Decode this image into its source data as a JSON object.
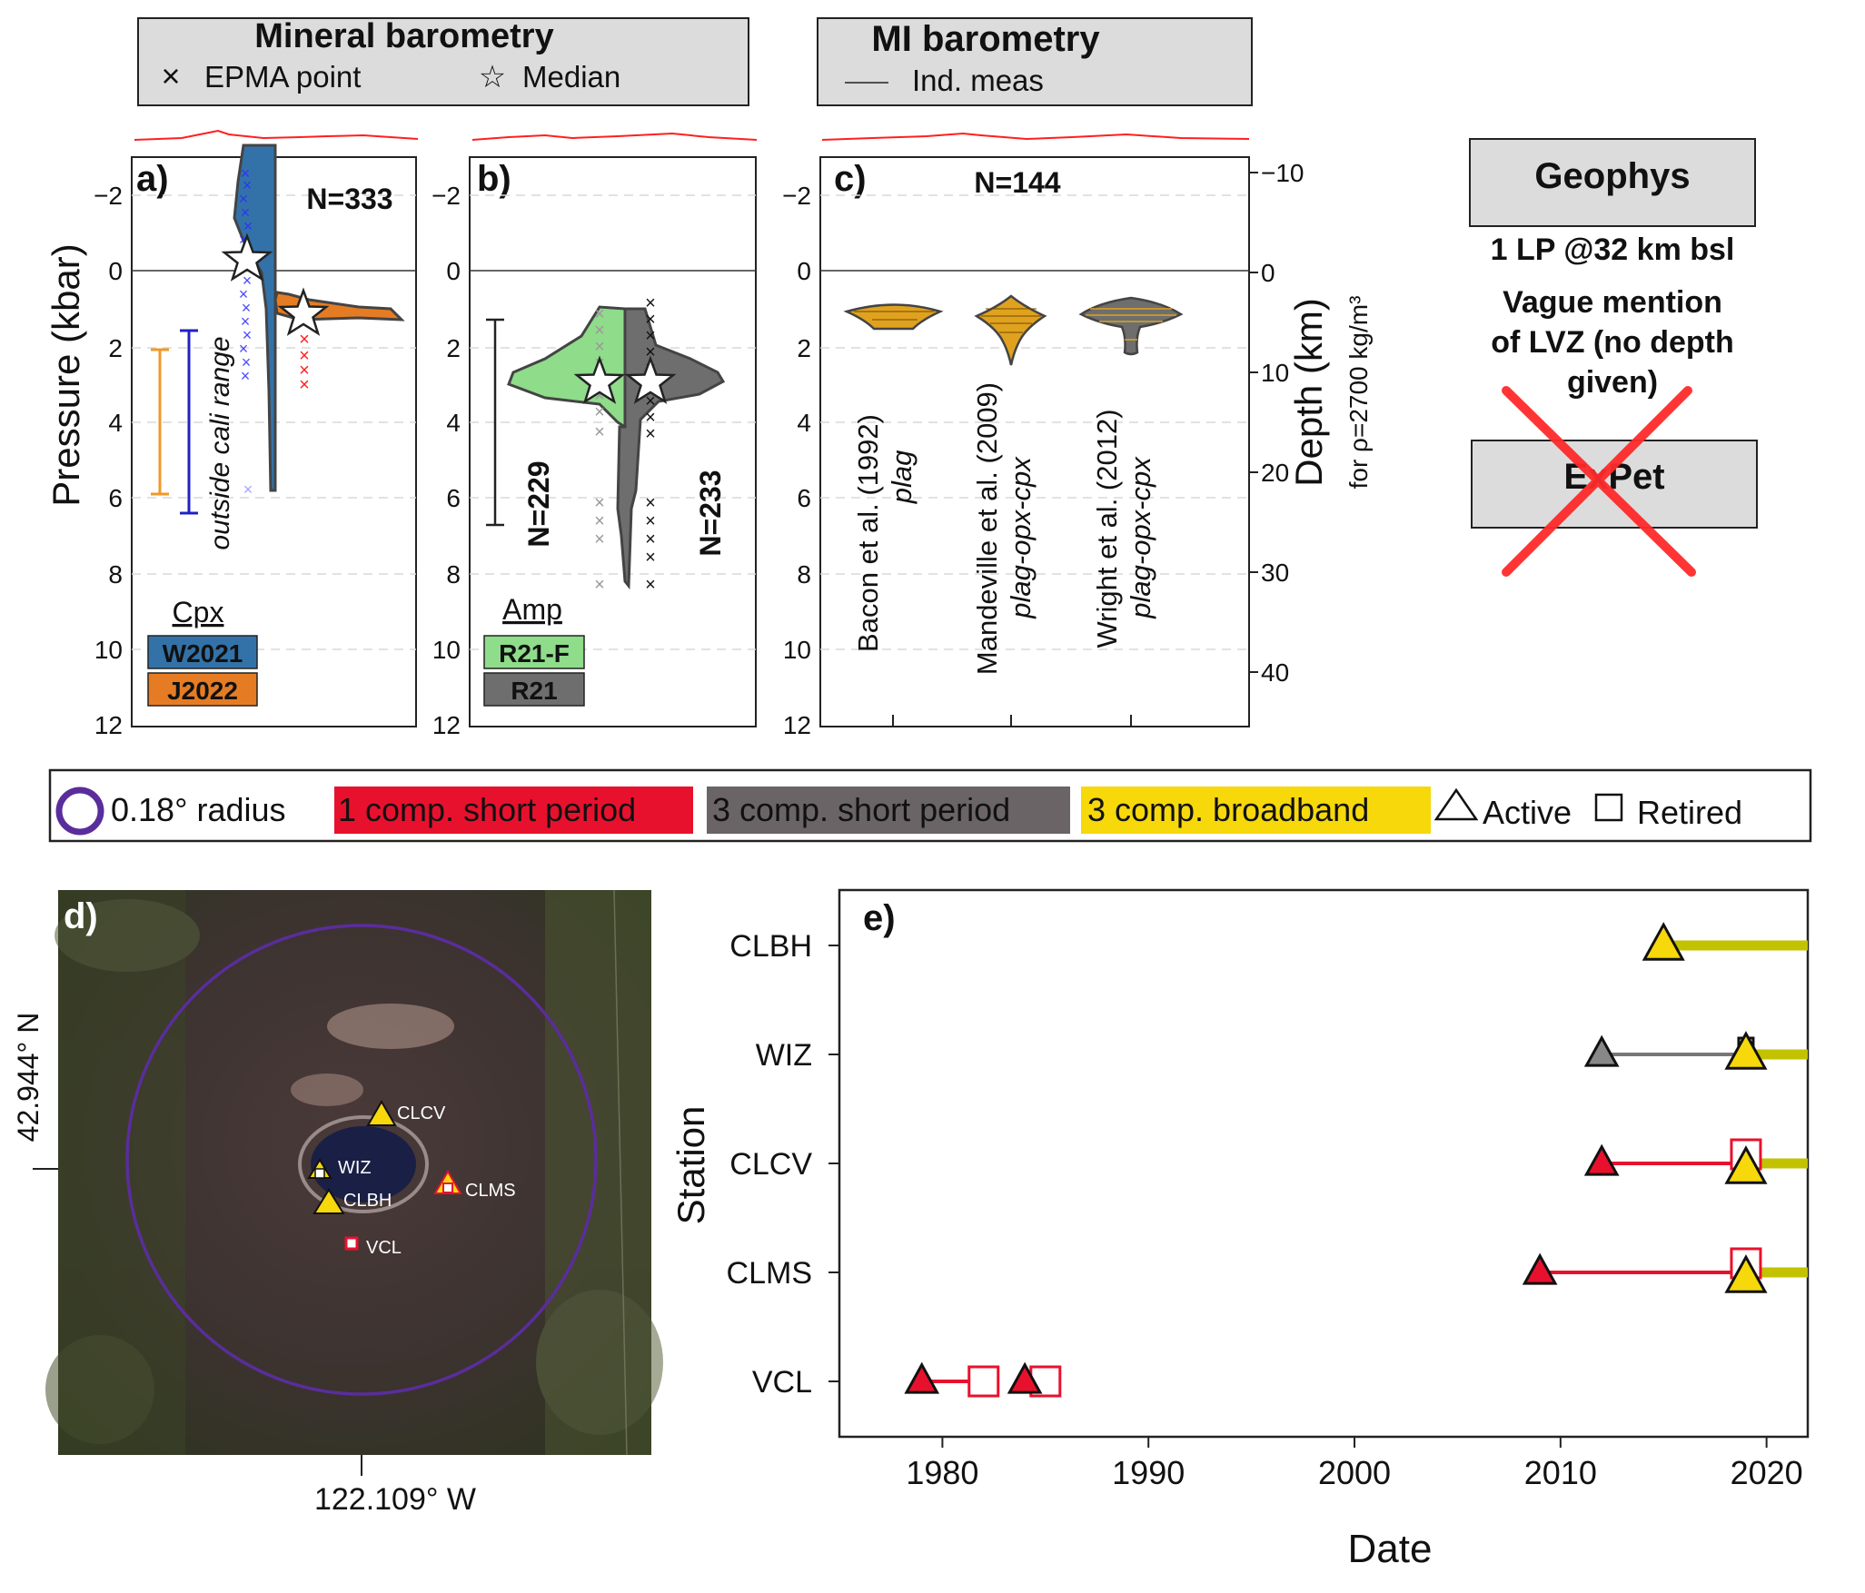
{
  "headers": {
    "mineral": {
      "title": "Mineral barometry",
      "key1": "EPMA point",
      "key2": "Median"
    },
    "mi": {
      "title": "MI barometry",
      "key1": "Ind. meas"
    }
  },
  "panel_a": {
    "label": "a)",
    "ylabel": "Pressure (kbar)",
    "ticks": [
      "−2",
      "0",
      "2",
      "4",
      "6",
      "8",
      "10",
      "12"
    ],
    "n_label": "N=333",
    "range_label": "outside cali range",
    "legend_title": "Cpx",
    "legend": [
      "W2021",
      "J2022"
    ]
  },
  "panel_b": {
    "label": "b)",
    "ticks": [
      "−2",
      "0",
      "2",
      "4",
      "6",
      "8",
      "10",
      "12"
    ],
    "n1": "N=229",
    "n2": "N=233",
    "legend_title": "Amp",
    "legend": [
      "R21-F",
      "R21"
    ]
  },
  "panel_c": {
    "label": "c)",
    "ticks": [
      "−2",
      "0",
      "2",
      "4",
      "6",
      "8",
      "10",
      "12"
    ],
    "n_label": "N=144",
    "right_label": "Depth (km)",
    "right_sub": "for ρ=2700 kg/m³",
    "right_ticks": [
      "−10",
      "0",
      "10",
      "20",
      "30",
      "40"
    ],
    "studies": [
      {
        "name": "Bacon et al. (1992)",
        "method": "plag"
      },
      {
        "name": "Mandeville et al. (2009)",
        "method": "plag-opx-cpx"
      },
      {
        "name": "Wright et al. (2012)",
        "method": "plag-opx-cpx"
      }
    ]
  },
  "side": {
    "geophys": "Geophys",
    "line1": "1 LP @32 km bsl",
    "line2": "Vague mention",
    "line3": "of LVZ (no depth",
    "line4": "given)",
    "expet": "ExPet"
  },
  "legend_bar": {
    "radius": "0.18° radius",
    "short1": "1 comp. short period",
    "short3": "3 comp. short period",
    "broadband": "3 comp. broadband",
    "active": "Active",
    "retired": "Retired"
  },
  "map": {
    "label": "d)",
    "lat": "42.944° N",
    "lon": "122.109° W",
    "stations": [
      "CLCV",
      "WIZ",
      "CLBH",
      "CLMS",
      "VCL"
    ]
  },
  "chart_data": {
    "type": "scatter",
    "title": "",
    "panel_label": "e)",
    "xlabel": "Date",
    "ylabel": "Station",
    "xlim": [
      1975,
      2022
    ],
    "xticks": [
      "1980",
      "1990",
      "2000",
      "2010",
      "2020"
    ],
    "categories": [
      "CLBH",
      "WIZ",
      "CLCV",
      "CLMS",
      "VCL"
    ],
    "segments": [
      {
        "station": "CLBH",
        "type": "3 comp. broadband",
        "start": 2015.0,
        "end": 2022,
        "start_status": "Active"
      },
      {
        "station": "WIZ",
        "type": "3 comp. short period",
        "start": 2012.0,
        "end": 2019.0,
        "start_status": "Active",
        "end_status": "Retired"
      },
      {
        "station": "WIZ",
        "type": "3 comp. broadband",
        "start": 2019.0,
        "end": 2022,
        "start_status": "Active"
      },
      {
        "station": "CLCV",
        "type": "1 comp. short period",
        "start": 2012.0,
        "end": 2019.0,
        "start_status": "Active",
        "end_status": "Retired"
      },
      {
        "station": "CLCV",
        "type": "3 comp. broadband",
        "start": 2019.0,
        "end": 2022,
        "start_status": "Active"
      },
      {
        "station": "CLMS",
        "type": "1 comp. short period",
        "start": 2009.0,
        "end": 2019.0,
        "start_status": "Active",
        "end_status": "Retired"
      },
      {
        "station": "CLMS",
        "type": "3 comp. broadband",
        "start": 2019.0,
        "end": 2022,
        "start_status": "Active"
      },
      {
        "station": "VCL",
        "type": "1 comp. short period",
        "start": 1979.0,
        "end": 1982.0,
        "start_status": "Active",
        "end_status": "Retired"
      },
      {
        "station": "VCL",
        "type": "1 comp. short period",
        "start": 1984.0,
        "end": 1985.0,
        "start_status": "Active",
        "end_status": "Retired"
      }
    ]
  },
  "colors": {
    "w2021": "#3372a8",
    "j2022": "#e57c23",
    "r21f": "#8fdc8a",
    "r21": "#6e6e6e",
    "short1": "#e8112d",
    "short3": "#6a6466",
    "broadband": "#f6d80b",
    "radius": "#5a2d9c",
    "cross": "#ff2b2b",
    "bb_line": "#c3c200"
  }
}
